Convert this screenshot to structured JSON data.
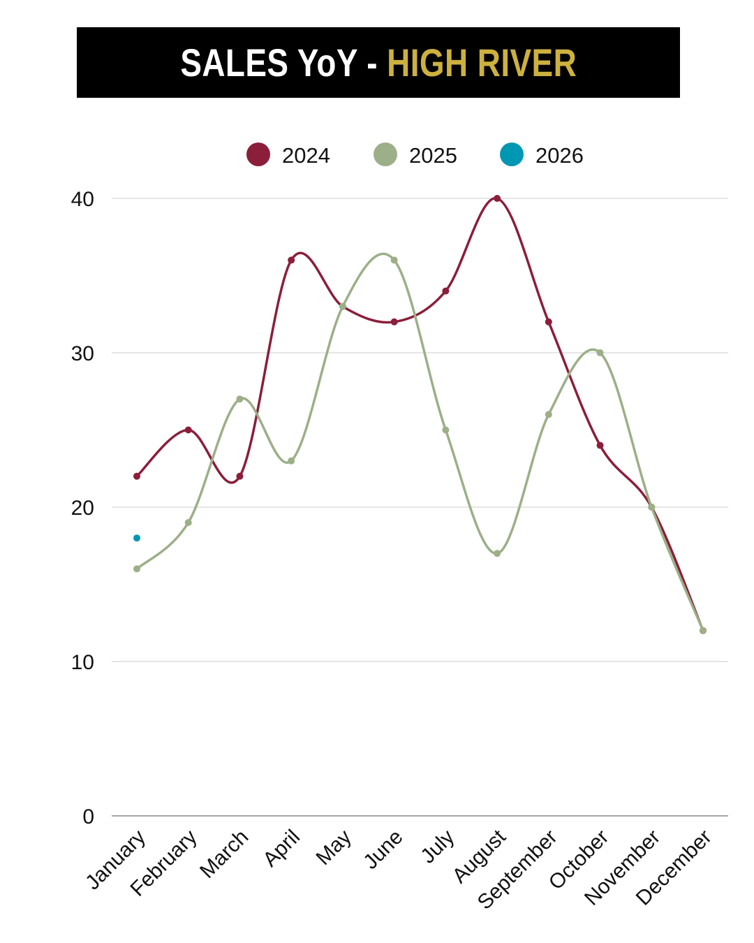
{
  "title": {
    "prefix": "SALES YoY - ",
    "accent": "HIGH RIVER",
    "accent_color": "#cdb13f"
  },
  "chart_data": {
    "type": "line",
    "smooth": true,
    "categories": [
      "January",
      "February",
      "March",
      "April",
      "May",
      "June",
      "July",
      "August",
      "September",
      "October",
      "November",
      "December"
    ],
    "series": [
      {
        "name": "2024",
        "color": "#8b1e3a",
        "values": [
          22,
          25,
          22,
          36,
          33,
          32,
          34,
          40,
          32,
          24,
          20,
          12
        ]
      },
      {
        "name": "2025",
        "color": "#9caf88",
        "values": [
          16,
          19,
          27,
          23,
          33,
          36,
          25,
          17,
          26,
          30,
          20,
          12
        ]
      },
      {
        "name": "2026",
        "color": "#0097b2",
        "values": [
          18,
          null,
          null,
          null,
          null,
          null,
          null,
          null,
          null,
          null,
          null,
          null
        ]
      }
    ],
    "yticks": [
      0,
      10,
      20,
      30,
      40
    ],
    "ylim": [
      0,
      40
    ],
    "grid": true,
    "legend": "top-center"
  }
}
